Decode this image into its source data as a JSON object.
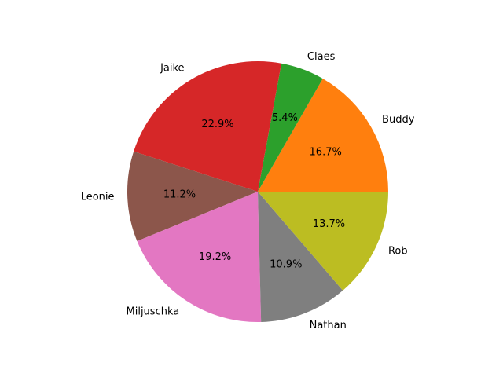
{
  "chart_data": {
    "type": "pie",
    "title": "",
    "start_angle_deg": 0,
    "direction": "counterclockwise",
    "legend": "none",
    "slices": [
      {
        "label": "Buddy",
        "value": 16.7,
        "pct_text": "16.7%",
        "color": "#ff7f0e"
      },
      {
        "label": "Claes",
        "value": 5.4,
        "pct_text": "5.4%",
        "color": "#2ca02c"
      },
      {
        "label": "Jaike",
        "value": 22.9,
        "pct_text": "22.9%",
        "color": "#d62728"
      },
      {
        "label": "Leonie",
        "value": 11.2,
        "pct_text": "11.2%",
        "color": "#8c564b"
      },
      {
        "label": "Miljuschka",
        "value": 19.2,
        "pct_text": "19.2%",
        "color": "#e377c2"
      },
      {
        "label": "Nathan",
        "value": 10.9,
        "pct_text": "10.9%",
        "color": "#7f7f7f"
      },
      {
        "label": "Rob",
        "value": 13.7,
        "pct_text": "13.7%",
        "color": "#bcbd22"
      }
    ]
  }
}
